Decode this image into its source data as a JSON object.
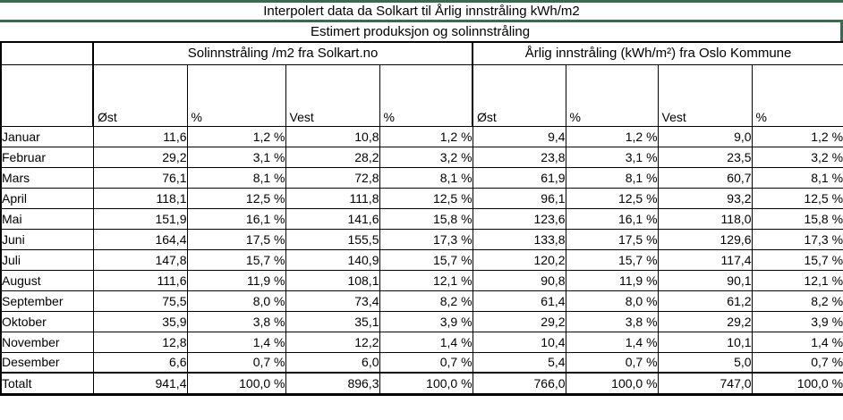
{
  "title": "Interpolert data da Solkart til Årlig innstråling kWh/m2",
  "subtitle": "Estimert produksjon og solinnstråling",
  "groups": [
    {
      "label": "Solinnstråling /m2 fra Solkart.no"
    },
    {
      "label": "Årlig innstråling (kWh/m²) fra Oslo Kommune"
    }
  ],
  "columns": [
    "Øst",
    "%",
    "Vest",
    "%",
    "Øst",
    "%",
    "Vest",
    "%"
  ],
  "rows": [
    {
      "label": "Januar",
      "values": [
        "11,6",
        "1,2 %",
        "10,8",
        "1,2 %",
        "9,4",
        "1,2 %",
        "9,0",
        "1,2 %"
      ]
    },
    {
      "label": "Februar",
      "values": [
        "29,2",
        "3,1 %",
        "28,2",
        "3,2 %",
        "23,8",
        "3,1 %",
        "23,5",
        "3,2 %"
      ]
    },
    {
      "label": "Mars",
      "values": [
        "76,1",
        "8,1 %",
        "72,8",
        "8,1 %",
        "61,9",
        "8,1 %",
        "60,7",
        "8,1 %"
      ]
    },
    {
      "label": "April",
      "values": [
        "118,1",
        "12,5 %",
        "111,8",
        "12,5 %",
        "96,1",
        "12,5 %",
        "93,2",
        "12,5 %"
      ]
    },
    {
      "label": "Mai",
      "values": [
        "151,9",
        "16,1 %",
        "141,6",
        "15,8 %",
        "123,6",
        "16,1 %",
        "118,0",
        "15,8 %"
      ]
    },
    {
      "label": "Juni",
      "values": [
        "164,4",
        "17,5 %",
        "155,5",
        "17,3 %",
        "133,8",
        "17,5 %",
        "129,6",
        "17,3 %"
      ]
    },
    {
      "label": "Juli",
      "values": [
        "147,8",
        "15,7 %",
        "140,9",
        "15,7 %",
        "120,2",
        "15,7 %",
        "117,4",
        "15,7 %"
      ]
    },
    {
      "label": "August",
      "values": [
        "111,6",
        "11,9 %",
        "108,1",
        "12,1 %",
        "90,8",
        "11,9 %",
        "90,1",
        "12,1 %"
      ]
    },
    {
      "label": "September",
      "values": [
        "75,5",
        "8,0 %",
        "73,4",
        "8,2 %",
        "61,4",
        "8,0 %",
        "61,2",
        "8,2 %"
      ]
    },
    {
      "label": "Oktober",
      "values": [
        "35,9",
        "3,8 %",
        "35,1",
        "3,9 %",
        "29,2",
        "3,8 %",
        "29,2",
        "3,9 %"
      ]
    },
    {
      "label": "November",
      "values": [
        "12,8",
        "1,4 %",
        "12,2",
        "1,4 %",
        "10,4",
        "1,4 %",
        "10,1",
        "1,4 %"
      ]
    },
    {
      "label": "Desember",
      "values": [
        "6,6",
        "0,7 %",
        "6,0",
        "0,7 %",
        "5,4",
        "0,7 %",
        "5,0",
        "0,7 %"
      ]
    },
    {
      "label": "Totalt",
      "is_total": true,
      "values": [
        "941,4",
        "100,0 %",
        "896,3",
        "100,0 %",
        "766,0",
        "100,0 %",
        "747,0",
        "100,0 %"
      ]
    }
  ],
  "colors": {
    "accent_green": "#386b50",
    "grid": "#000000",
    "text": "#000000",
    "background": "#ffffff"
  }
}
